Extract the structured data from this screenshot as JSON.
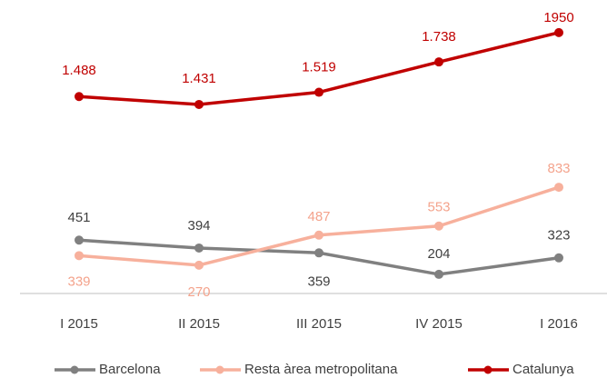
{
  "chart_data": {
    "type": "line",
    "categories": [
      "I 2015",
      "II 2015",
      "III 2015",
      "IV 2015",
      "I 2016"
    ],
    "series": [
      {
        "name": "Barcelona",
        "color": "#808080",
        "values": [
          451,
          394,
          359,
          204,
          323
        ]
      },
      {
        "name": "Resta àrea metropolitana",
        "color": "#f7b09c",
        "values": [
          339,
          270,
          487,
          553,
          833
        ]
      },
      {
        "name": "Catalunya",
        "color": "#c00000",
        "values": [
          1488,
          1431,
          1519,
          1738,
          1950
        ],
        "value_labels": [
          "1.488",
          "1.431",
          "1.519",
          "1.738",
          "1950"
        ]
      }
    ],
    "ylim": [
      0,
      2100
    ],
    "legend": "bottom"
  }
}
